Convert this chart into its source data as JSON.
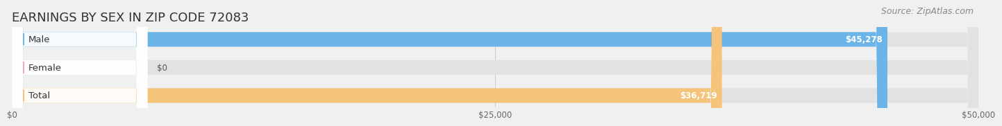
{
  "title": "EARNINGS BY SEX IN ZIP CODE 72083",
  "source": "Source: ZipAtlas.com",
  "categories": [
    "Male",
    "Female",
    "Total"
  ],
  "values": [
    45278,
    0,
    36719
  ],
  "colors": [
    "#6ab4e8",
    "#f4a8c0",
    "#f5c47a"
  ],
  "bar_labels": [
    "$45,278",
    "$0",
    "$36,719"
  ],
  "x_ticks": [
    0,
    25000,
    50000
  ],
  "x_tick_labels": [
    "$0",
    "$25,000",
    "$50,000"
  ],
  "xlim": [
    0,
    50000
  ],
  "background_color": "#f0f0f0",
  "bar_background_color": "#e2e2e2",
  "title_fontsize": 13,
  "source_fontsize": 9,
  "label_fontsize": 8.5,
  "tick_fontsize": 8.5,
  "cat_fontsize": 9.5,
  "bar_height": 0.52,
  "bar_gap": 0.18
}
